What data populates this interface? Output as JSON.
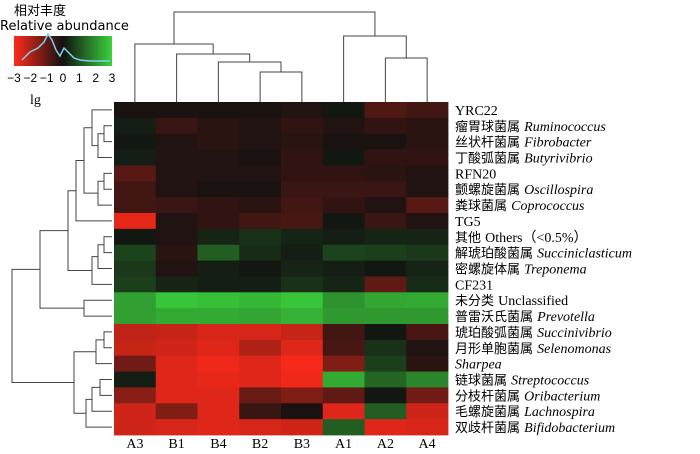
{
  "chart_data": {
    "type": "heatmap",
    "legend": {
      "title_cn": "相对丰度",
      "title_en": "Relative abundance",
      "ticks": [
        "−3",
        "−2",
        "−1",
        "0",
        "1",
        "2",
        "3"
      ],
      "range": [
        -3,
        3
      ],
      "scale_label": "lg",
      "low_color": "#ff2a1a",
      "mid_color": "#111111",
      "high_color": "#3cd23c"
    },
    "columns": [
      "A3",
      "B1",
      "B4",
      "B2",
      "B3",
      "A1",
      "A2",
      "A4"
    ],
    "rows": [
      {
        "cn": "",
        "en": "YRC22",
        "italic": false
      },
      {
        "cn": "瘤胃球菌属",
        "en": "Ruminococcus",
        "italic": true
      },
      {
        "cn": "丝状杆菌属",
        "en": "Fibrobacter",
        "italic": true
      },
      {
        "cn": "丁酸弧菌属",
        "en": "Butyrivibrio",
        "italic": true
      },
      {
        "cn": "",
        "en": "RFN20",
        "italic": false
      },
      {
        "cn": "颤螺旋菌属",
        "en": "Oscillospira",
        "italic": true
      },
      {
        "cn": "粪球菌属",
        "en": "Coprococcus",
        "italic": true
      },
      {
        "cn": "",
        "en": "TG5",
        "italic": false
      },
      {
        "cn": "其他",
        "en": "Others（<0.5%）",
        "italic": false
      },
      {
        "cn": "解琥珀酸菌属",
        "en": "Succiniclasticum",
        "italic": true
      },
      {
        "cn": "密螺旋体属",
        "en": "Treponema",
        "italic": true
      },
      {
        "cn": "",
        "en": "CF231",
        "italic": false
      },
      {
        "cn": "未分类",
        "en": "Unclassified",
        "italic": false
      },
      {
        "cn": "普雷沃氏菌属",
        "en": "Prevotella",
        "italic": true
      },
      {
        "cn": "琥珀酸弧菌属",
        "en": "Succinivibrio",
        "italic": true
      },
      {
        "cn": "月形单胞菌属",
        "en": "Selenomonas",
        "italic": true
      },
      {
        "cn": "",
        "en": "Sharpea",
        "italic": true
      },
      {
        "cn": "链球菌属",
        "en": "Streptococcus",
        "italic": true
      },
      {
        "cn": "分枝杆菌属",
        "en": "Oribacterium",
        "italic": true
      },
      {
        "cn": "毛螺旋菌属",
        "en": "Lachnospira",
        "italic": true
      },
      {
        "cn": "双歧杆菌属",
        "en": "Bifidobacterium",
        "italic": true
      }
    ],
    "values": [
      [
        -0.1,
        -0.1,
        -0.1,
        -0.1,
        -0.2,
        0.1,
        -0.8,
        -0.6
      ],
      [
        0.2,
        -0.5,
        -0.3,
        -0.2,
        -0.4,
        -0.2,
        -0.4,
        -0.3
      ],
      [
        0.1,
        -0.2,
        -0.3,
        -0.2,
        -0.3,
        -0.1,
        -0.1,
        -0.3
      ],
      [
        0.2,
        -0.2,
        -0.2,
        -0.1,
        -0.4,
        0.1,
        -0.4,
        -0.4
      ],
      [
        -0.9,
        -0.2,
        -0.2,
        -0.2,
        -0.4,
        -0.4,
        -0.3,
        -0.2
      ],
      [
        -0.6,
        -0.2,
        -0.1,
        -0.1,
        -0.5,
        -0.5,
        -0.5,
        -0.2
      ],
      [
        -0.6,
        -0.5,
        -0.4,
        -0.3,
        -0.6,
        -0.4,
        -0.2,
        -0.9
      ],
      [
        -2.7,
        -0.2,
        -0.4,
        -0.6,
        -0.7,
        0.1,
        -0.5,
        -0.2
      ],
      [
        0.1,
        -0.2,
        0.3,
        0.5,
        0.3,
        0.2,
        0.3,
        0.3
      ],
      [
        0.8,
        -0.3,
        1.2,
        0.4,
        0.2,
        0.8,
        0.7,
        0.6
      ],
      [
        0.6,
        -0.2,
        0.2,
        0.1,
        0.3,
        0.2,
        0.1,
        0.3
      ],
      [
        0.7,
        0.3,
        0.2,
        0.2,
        0.5,
        0.3,
        -1.0,
        0.4
      ],
      [
        2.2,
        2.8,
        2.7,
        2.6,
        2.8,
        2.0,
        2.3,
        2.4
      ],
      [
        2.2,
        2.4,
        2.4,
        2.3,
        2.5,
        2.1,
        2.1,
        2.1
      ],
      [
        -2.2,
        -2.3,
        -2.5,
        -2.5,
        -2.3,
        -0.6,
        0.1,
        -0.7
      ],
      [
        -2.3,
        -2.4,
        -2.6,
        -2.0,
        -2.6,
        -0.7,
        0.5,
        -0.2
      ],
      [
        -1.2,
        -2.6,
        -2.8,
        -2.6,
        -2.9,
        -1.4,
        0.7,
        -0.3
      ],
      [
        0.2,
        -2.6,
        -2.7,
        -2.6,
        -2.8,
        2.4,
        1.3,
        1.8
      ],
      [
        -1.5,
        -2.6,
        -2.6,
        -1.1,
        -1.4,
        -1.0,
        0.1,
        -1.2
      ],
      [
        -2.4,
        -1.4,
        -2.6,
        -0.5,
        -0.1,
        -2.6,
        1.2,
        -2.4
      ],
      [
        -2.4,
        -2.5,
        -2.6,
        -2.5,
        -2.4,
        1.2,
        -2.6,
        -2.5
      ]
    ]
  }
}
